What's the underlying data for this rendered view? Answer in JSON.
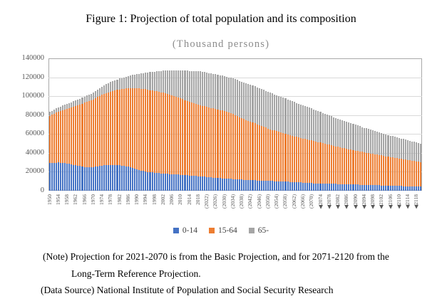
{
  "chart_data": {
    "type": "bar",
    "stacked": true,
    "title": "Figure 1: Projection of total population and its composition",
    "subtitle": "(Thousand persons)",
    "unit": "thousand persons",
    "grid": true,
    "legend_position": "bottom",
    "ylim": [
      0,
      140000
    ],
    "y_ticks": [
      0,
      20000,
      40000,
      60000,
      80000,
      100000,
      120000,
      140000
    ],
    "x_start_year": 1950,
    "x_end_year": 2120,
    "anchor_years": [
      1950,
      1954,
      1958,
      1962,
      1966,
      1970,
      1974,
      1978,
      1982,
      1986,
      1990,
      1994,
      1998,
      2002,
      2006,
      2010,
      2014,
      2018,
      2022,
      2026,
      2030,
      2034,
      2038,
      2042,
      2046,
      2050,
      2054,
      2058,
      2062,
      2066,
      2070,
      2074,
      2078,
      2082,
      2086,
      2090,
      2094,
      2098,
      2102,
      2106,
      2110,
      2114,
      2118
    ],
    "tick_labels": [
      "1950",
      "1954",
      "1958",
      "1962",
      "1966",
      "1970",
      "1974",
      "1978",
      "1982",
      "1986",
      "1990",
      "1994",
      "1998",
      "2002",
      "2006",
      "2010",
      "2014",
      "2018",
      "(2022)",
      "(2026)",
      "(2030)",
      "(2034)",
      "(2038)",
      "(2042)",
      "(2046)",
      "(2050)",
      "(2054)",
      "(2058)",
      "(2062)",
      "(2066)",
      "(2070)",
      "◀2074",
      "◀2078",
      "◀2082",
      "◀2086",
      "◀2090",
      "◀2094",
      "◀2098",
      "◀2102",
      "◀2106",
      "◀2110",
      "◀2114",
      "◀2118"
    ],
    "series": [
      {
        "name": "0-14",
        "color": "#4472C4",
        "values": [
          29430,
          29800,
          28760,
          26900,
          25100,
          24823,
          26700,
          27400,
          26900,
          25300,
          22486,
          20300,
          18900,
          18100,
          17400,
          16803,
          16000,
          15400,
          14500,
          13700,
          12900,
          12300,
          11700,
          11200,
          10800,
          10400,
          10000,
          9600,
          9100,
          8600,
          7975,
          7700,
          7400,
          7100,
          6800,
          6500,
          6200,
          5900,
          5600,
          5300,
          5000,
          4800,
          4600
        ]
      },
      {
        "name": "15-64",
        "color": "#ED7D31",
        "values": [
          49658,
          53900,
          57900,
          62800,
          67900,
          71566,
          75000,
          77600,
          80300,
          83200,
          85904,
          87100,
          86600,
          85500,
          83700,
          81032,
          77900,
          75700,
          74200,
          72900,
          71200,
          69000,
          65000,
          61800,
          58600,
          55400,
          52900,
          50600,
          48300,
          46700,
          45350,
          43200,
          41200,
          39300,
          37600,
          36000,
          34400,
          33000,
          31700,
          30400,
          29100,
          27800,
          26400
        ]
      },
      {
        "name": "65-",
        "color": "#A5A5A5",
        "values": [
          4109,
          4620,
          5110,
          5700,
          6460,
          7331,
          8560,
          9930,
          11380,
          12950,
          14895,
          17590,
          20510,
          23470,
          26390,
          29246,
          32940,
          35580,
          36240,
          36600,
          37000,
          37700,
          38600,
          39300,
          39200,
          38900,
          38200,
          37400,
          36400,
          35100,
          33671,
          32300,
          31000,
          29700,
          28400,
          27200,
          26000,
          24800,
          23700,
          22600,
          21700,
          20800,
          20000
        ]
      }
    ]
  },
  "notes": {
    "line1": "(Note) Projection for 2021-2070 is from the Basic Projection, and for 2071-2120 from the",
    "line2": "Long-Term Reference Projection.",
    "line3": "(Data Source) National Institute of Population and Social Security Research"
  }
}
